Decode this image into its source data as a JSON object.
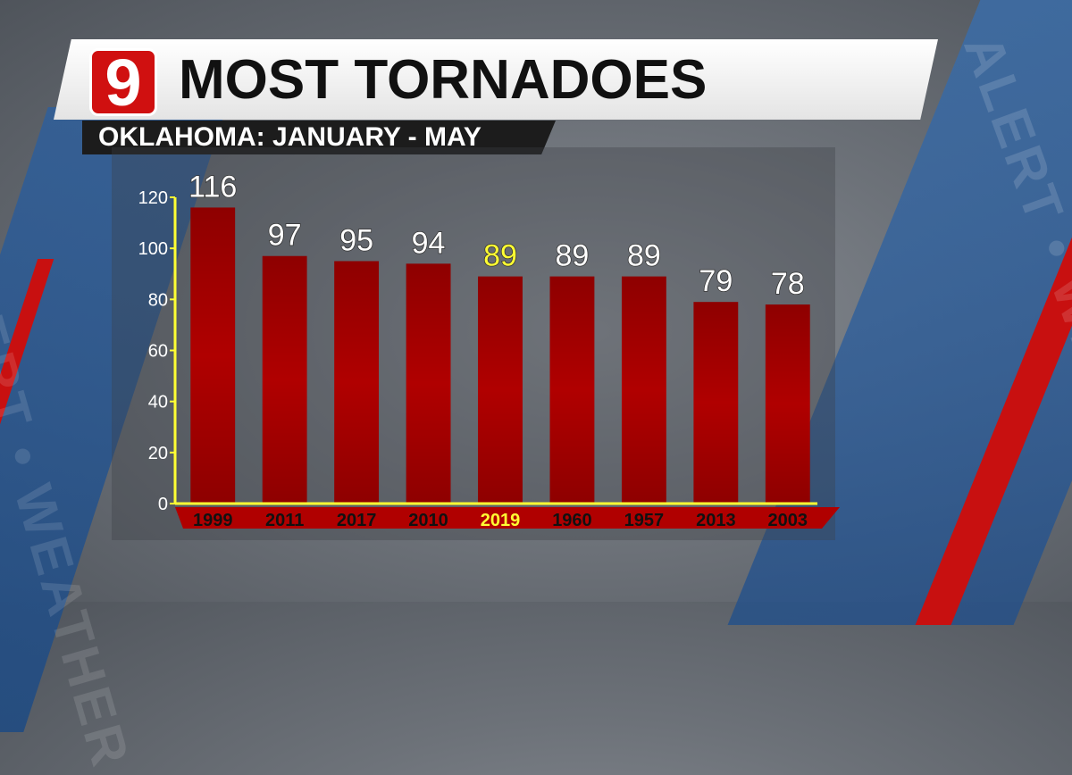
{
  "branding": {
    "logo_text": "9"
  },
  "header": {
    "title": "MOST TORNADOES",
    "subtitle": "OKLAHOMA: JANUARY - MAY"
  },
  "watermark": {
    "left_text": "ALERT • WEATHER",
    "right_text": "ALERT • WEATHER"
  },
  "colors": {
    "bar": "#b00000",
    "highlight_label": "#ffff33",
    "axis": "#ffff33",
    "normal_label": "#ffffff"
  },
  "chart_data": {
    "type": "bar",
    "title": "MOST TORNADOES",
    "subtitle": "OKLAHOMA: JANUARY - MAY",
    "categories": [
      "1999",
      "2011",
      "2017",
      "2010",
      "2019",
      "1960",
      "1957",
      "2013",
      "2003"
    ],
    "values": [
      116,
      97,
      95,
      94,
      89,
      89,
      89,
      79,
      78
    ],
    "highlight": "2019",
    "ylim": [
      0,
      120
    ],
    "yticks": [
      0,
      20,
      40,
      60,
      80,
      100,
      120
    ],
    "xlabel": "",
    "ylabel": "",
    "grid": false,
    "legend": "none"
  }
}
